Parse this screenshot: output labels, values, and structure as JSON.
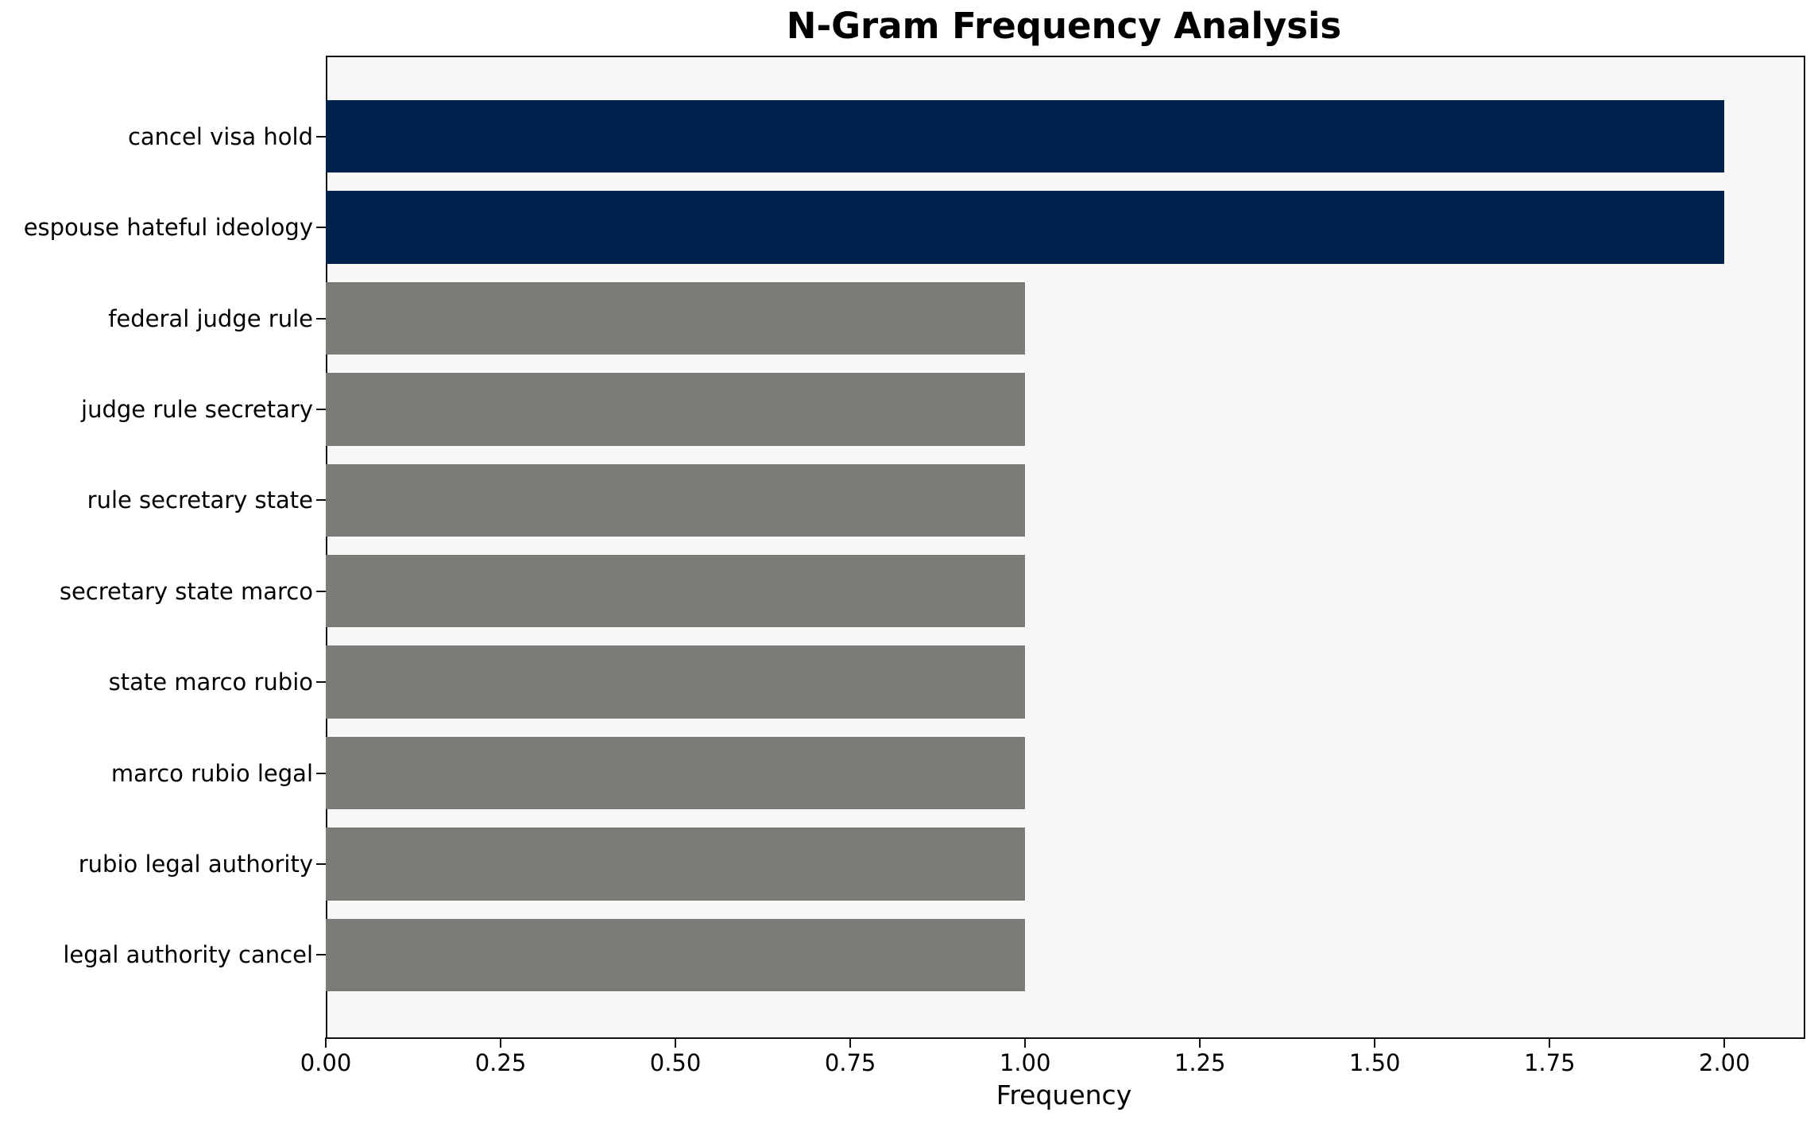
{
  "title": "N-Gram Frequency Analysis",
  "axis": {
    "xlabel": "Frequency"
  },
  "colors": {
    "highlight_bar": "#00234e",
    "default_bar": "#7b7b78",
    "plot_background": "#f7f7f7",
    "spine": "#0f0f0f",
    "text": "#000000"
  },
  "chart_data": {
    "type": "bar",
    "orientation": "horizontal",
    "title": "N-Gram Frequency Analysis",
    "xlabel": "Frequency",
    "ylabel": "",
    "categories": [
      "cancel visa hold",
      "espouse hateful ideology",
      "federal judge rule",
      "judge rule secretary",
      "rule secretary state",
      "secretary state marco",
      "state marco rubio",
      "marco rubio legal",
      "rubio legal authority",
      "legal authority cancel"
    ],
    "values": [
      2,
      2,
      1,
      1,
      1,
      1,
      1,
      1,
      1,
      1
    ],
    "bar_colors": [
      "#00234e",
      "#00234e",
      "#7b7b78",
      "#7b7b78",
      "#7b7b78",
      "#7b7b78",
      "#7b7b78",
      "#7b7b78",
      "#7b7b78",
      "#7b7b78"
    ],
    "xlim": [
      0.0,
      2.111
    ],
    "xticks": [
      {
        "value": 0.0,
        "label": "0.00"
      },
      {
        "value": 0.25,
        "label": "0.25"
      },
      {
        "value": 0.5,
        "label": "0.50"
      },
      {
        "value": 0.75,
        "label": "0.75"
      },
      {
        "value": 1.0,
        "label": "1.00"
      },
      {
        "value": 1.25,
        "label": "1.25"
      },
      {
        "value": 1.5,
        "label": "1.50"
      },
      {
        "value": 1.75,
        "label": "1.75"
      },
      {
        "value": 2.0,
        "label": "2.00"
      }
    ],
    "grid": false,
    "legend": false
  }
}
